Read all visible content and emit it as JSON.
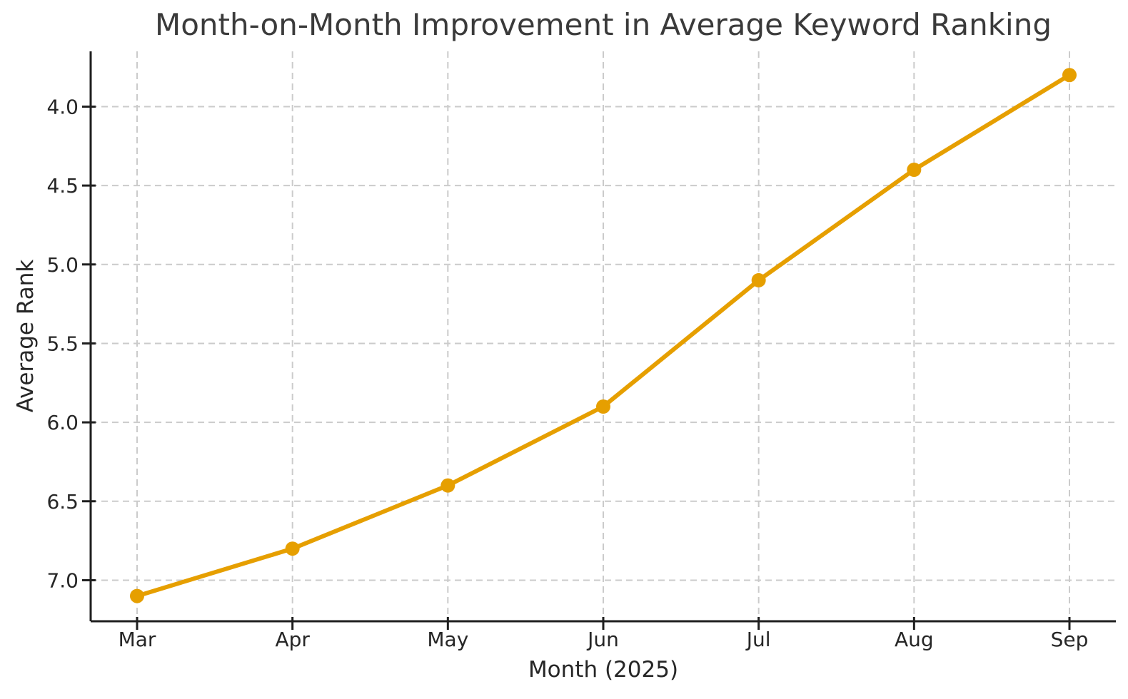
{
  "chart_data": {
    "type": "line",
    "title": "Month-on-Month Improvement in Average Keyword Ranking",
    "xlabel": "Month (2025)",
    "ylabel": "Average Rank",
    "categories": [
      "Mar",
      "Apr",
      "May",
      "Jun",
      "Jul",
      "Aug",
      "Sep"
    ],
    "series": [
      {
        "name": "Average Rank",
        "values": [
          7.1,
          6.8,
          6.4,
          5.9,
          5.1,
          4.4,
          3.8
        ]
      }
    ],
    "y_ticks": [
      4.0,
      4.5,
      5.0,
      5.5,
      6.0,
      6.5,
      7.0
    ],
    "y_tick_labels": [
      "4.0",
      "4.5",
      "5.0",
      "5.5",
      "6.0",
      "6.5",
      "7.0"
    ],
    "y_axis_inverted": true,
    "y_range_top_value": 3.65,
    "y_range_bottom_value": 7.26,
    "grid": "dashed, both axes",
    "legend_position": "none",
    "marker": "circle"
  },
  "colors": {
    "line": "#E69F00",
    "marker": "#E69F00",
    "grid": "#cbcbcb",
    "spine": "#1f1f1f",
    "tick_text": "#262626",
    "title_text": "#3a3a3a",
    "background": "#ffffff"
  }
}
